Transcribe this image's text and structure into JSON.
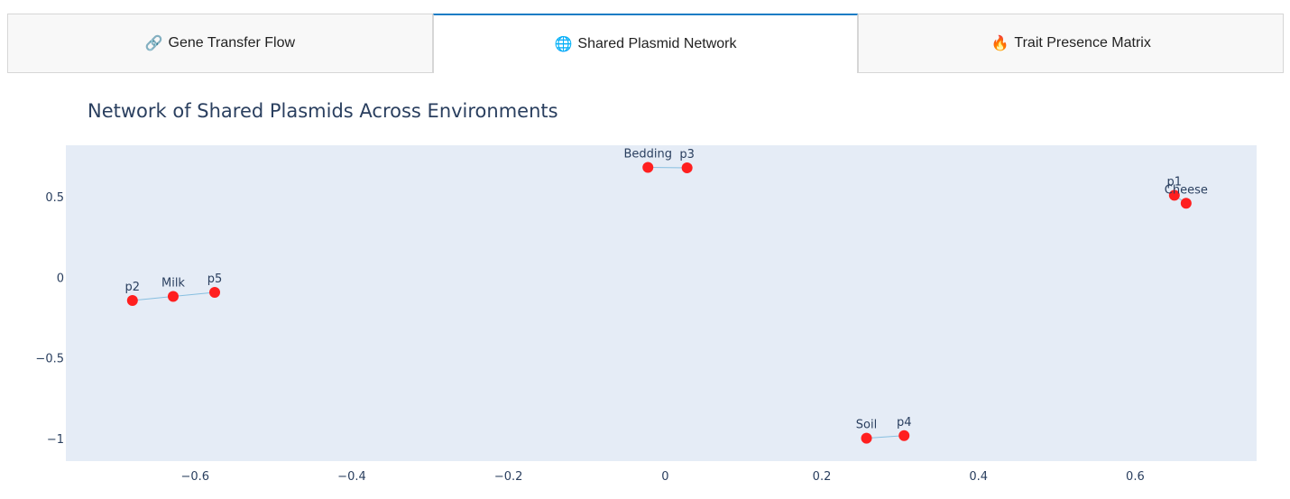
{
  "tabs": [
    {
      "icon": "🔗",
      "icon_name": "link-icon",
      "label": "Gene Transfer Flow",
      "active": false
    },
    {
      "icon": "🌐",
      "icon_name": "globe-icon",
      "label": "Shared Plasmid Network",
      "active": true
    },
    {
      "icon": "🔥",
      "icon_name": "fire-icon",
      "label": "Trait Presence Matrix",
      "active": false
    }
  ],
  "chart_data": {
    "type": "scatter",
    "title": "Network of Shared Plasmids Across Environments",
    "xlabel": "",
    "ylabel": "",
    "xlim": [
      -0.765,
      0.755
    ],
    "ylim": [
      -1.14,
      0.82
    ],
    "x_ticks": [
      -0.6,
      -0.4,
      -0.2,
      0,
      0.2,
      0.4,
      0.6
    ],
    "x_tick_labels": [
      "−0.6",
      "−0.4",
      "−0.2",
      "0",
      "0.2",
      "0.4",
      "0.6"
    ],
    "y_ticks": [
      0.5,
      0,
      -0.5,
      -1
    ],
    "y_tick_labels": [
      "0.5",
      "0",
      "−0.5",
      "−1"
    ],
    "grid": false,
    "plot_bgcolor": "#e5ecf6",
    "node_color": "#ff1f1f",
    "edge_color": "#87bfe0",
    "nodes": [
      {
        "name": "Milk",
        "x": -0.628,
        "y": -0.118
      },
      {
        "name": "p2",
        "x": -0.68,
        "y": -0.143
      },
      {
        "name": "p5",
        "x": -0.575,
        "y": -0.093
      },
      {
        "name": "Bedding",
        "x": -0.022,
        "y": 0.683
      },
      {
        "name": "p3",
        "x": 0.028,
        "y": 0.68
      },
      {
        "name": "Cheese",
        "x": 0.665,
        "y": 0.46
      },
      {
        "name": "p1",
        "x": 0.65,
        "y": 0.51
      },
      {
        "name": "Soil",
        "x": 0.257,
        "y": -0.998
      },
      {
        "name": "p4",
        "x": 0.305,
        "y": -0.982
      }
    ],
    "edges": [
      [
        "p2",
        "Milk"
      ],
      [
        "Milk",
        "p5"
      ],
      [
        "Bedding",
        "p3"
      ],
      [
        "Cheese",
        "p1"
      ],
      [
        "Soil",
        "p4"
      ]
    ]
  }
}
